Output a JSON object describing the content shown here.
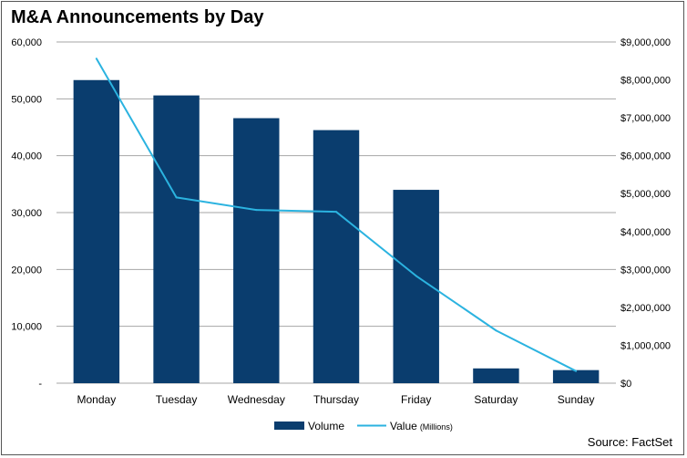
{
  "title": "M&A Announcements by Day",
  "source": "Source: FactSet",
  "colors": {
    "bar": "#0a3d6e",
    "line": "#2bb3e0",
    "grid": "#a6a6a6"
  },
  "chart_data": {
    "type": "bar",
    "title": "M&A Announcements by Day",
    "categories": [
      "Monday",
      "Tuesday",
      "Wednesday",
      "Thursday",
      "Friday",
      "Saturday",
      "Sunday"
    ],
    "series": [
      {
        "name": "Volume",
        "type": "bar",
        "axis": "left",
        "values": [
          53300,
          50600,
          46600,
          44500,
          34000,
          2600,
          2300
        ]
      },
      {
        "name": "Value",
        "name_suffix": "(Millions)",
        "type": "line",
        "axis": "right",
        "values": [
          8560000,
          4900000,
          4570000,
          4520000,
          2830000,
          1390000,
          320000
        ]
      }
    ],
    "y_left": {
      "min": 0,
      "max": 60000,
      "ticks": [
        "-",
        "10,000",
        "20,000",
        "30,000",
        "40,000",
        "50,000",
        "60,000"
      ]
    },
    "y_right": {
      "min": 0,
      "max": 9000000,
      "ticks": [
        "$0",
        "$1,000,000",
        "$2,000,000",
        "$3,000,000",
        "$4,000,000",
        "$5,000,000",
        "$6,000,000",
        "$7,000,000",
        "$8,000,000",
        "$9,000,000"
      ]
    },
    "grid": true,
    "legend": "bottom"
  }
}
